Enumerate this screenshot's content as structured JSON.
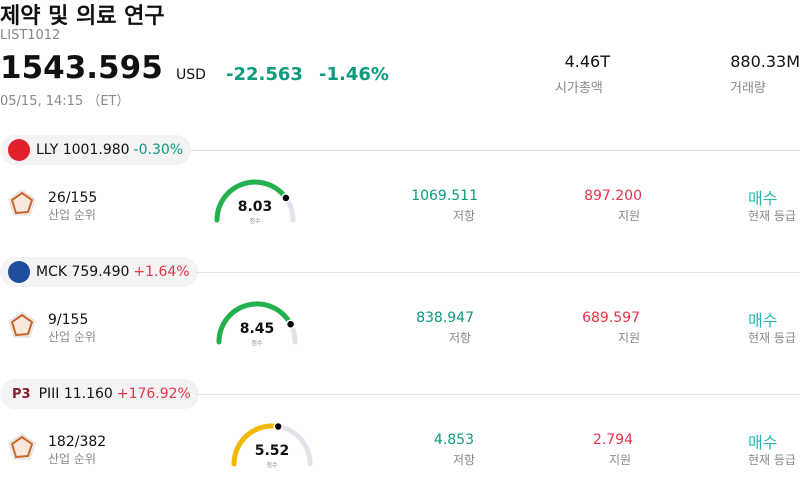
{
  "header": {
    "title": "제약 및 의료 연구",
    "code": "LIST1012",
    "price": "1543.595",
    "currency": "USD",
    "change": "-22.563",
    "change_pct": "-1.46%",
    "date": "05/15, 14:15 （ET）",
    "market_cap": "4.46T",
    "market_cap_label": "시가총액",
    "volume": "880.33M",
    "volume_label": "거래량"
  },
  "stocks": [
    {
      "ticker_price": "LLY 1001.980",
      "change": "-0.30%",
      "change_color": "#0a9b7e",
      "logo_color": "#e2202c",
      "rank": "26/155",
      "rank_label": "산업 순위",
      "score": "8.03",
      "score_label": "점수",
      "gauge_color": "#22b14c",
      "resistance": "1069.511",
      "resistance_label": "저항",
      "support": "897.200",
      "support_label": "지원",
      "rating": "매수",
      "rating_label": "현재 등급"
    },
    {
      "ticker_price": "MCK 759.490",
      "change": "+1.64%",
      "change_color": "#e8334a",
      "logo_color": "#1f4e9c",
      "rank": "9/155",
      "rank_label": "산업 순위",
      "score": "8.45",
      "score_label": "점수",
      "gauge_color": "#22b14c",
      "resistance": "838.947",
      "resistance_label": "저항",
      "support": "689.597",
      "support_label": "지원",
      "rating": "매수",
      "rating_label": "현재 등급"
    },
    {
      "logo": "P3",
      "ticker_price": "PIII 11.160",
      "change": "+176.92%",
      "change_color": "#e8334a",
      "rank": "182/382",
      "rank_label": "산업 순위",
      "score": "5.52",
      "score_label": "점수",
      "gauge_color": "#f5b800",
      "resistance": "4.853",
      "resistance_label": "저항",
      "support": "2.794",
      "support_label": "지원",
      "rating": "매수",
      "rating_label": "현재 등급"
    }
  ]
}
